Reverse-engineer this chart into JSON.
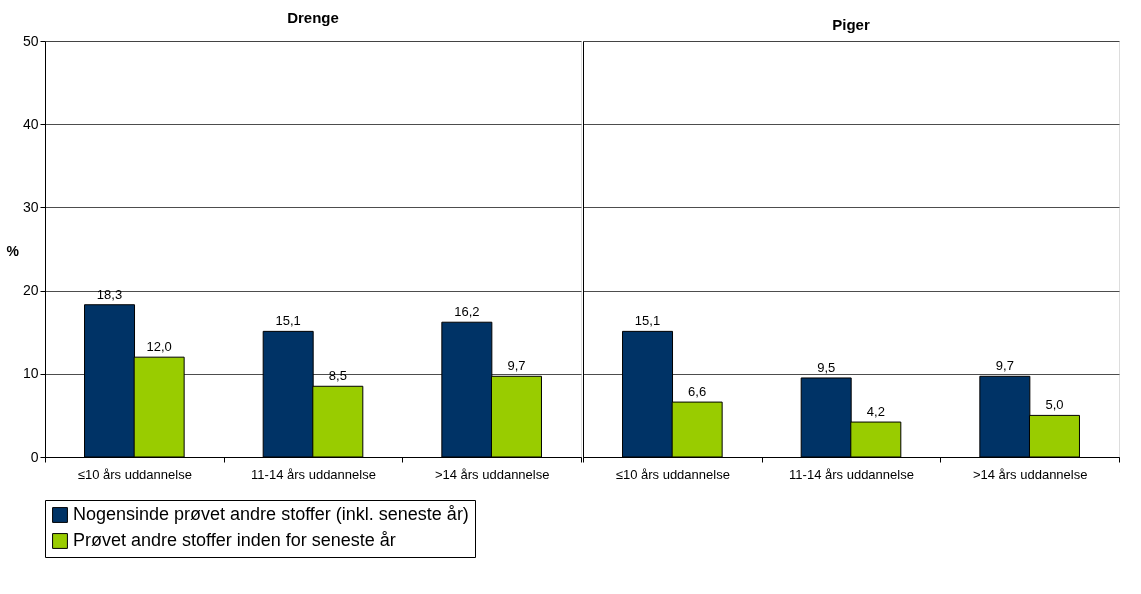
{
  "chart_data": [
    {
      "type": "bar",
      "title": "Drenge",
      "ylabel": "%",
      "categories": [
        "≤10 års uddannelse",
        "11-14 års uddannelse",
        ">14 års uddannelse"
      ],
      "ylim": [
        0,
        50
      ],
      "yticks": [
        0,
        10,
        20,
        30,
        40,
        50
      ],
      "grid": "y",
      "legend": "bottom",
      "series": [
        {
          "name": "Nogensinde prøvet andre stoffer (inkl. seneste år)",
          "color": "#003366",
          "values": [
            18.3,
            15.1,
            16.2
          ],
          "value_labels": [
            "18,3",
            "15,1",
            "16,2"
          ]
        },
        {
          "name": "Prøvet andre stoffer inden for seneste år",
          "color": "#99cc00",
          "values": [
            12.0,
            8.5,
            9.7
          ],
          "value_labels": [
            "12,0",
            "8,5",
            "9,7"
          ]
        }
      ]
    },
    {
      "type": "bar",
      "title": "Piger",
      "categories": [
        "≤10 års uddannelse",
        "11-14 års uddannelse",
        ">14 års uddannelse"
      ],
      "ylim": [
        0,
        50
      ],
      "yticks": [
        0,
        10,
        20,
        30,
        40,
        50
      ],
      "grid": "y",
      "legend": "bottom",
      "tick_labels": "x",
      "series": [
        {
          "name": "Nogensinde prøvet andre stoffer (inkl. seneste år)",
          "color": "#003366",
          "values": [
            15.1,
            9.5,
            9.7
          ],
          "value_labels": [
            "15,1",
            "9,5",
            "9,7"
          ]
        },
        {
          "name": "Prøvet andre stoffer inden for seneste år",
          "color": "#99cc00",
          "values": [
            6.6,
            4.2,
            5.0
          ],
          "value_labels": [
            "6,6",
            "4,2",
            "5,0"
          ]
        }
      ]
    }
  ]
}
